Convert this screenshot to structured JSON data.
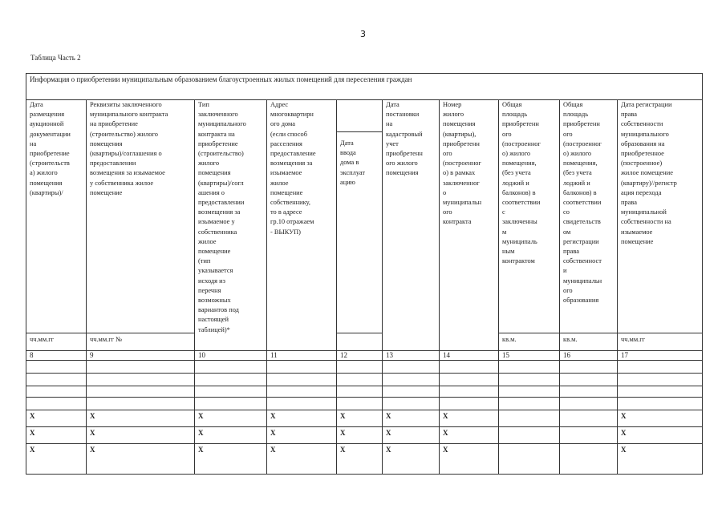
{
  "page_number": "3",
  "caption": "Таблица Часть 2",
  "table": {
    "title": "Информация о приобретении муниципальным образованием благоустроенных жилых помещений для  переселения граждан",
    "columns": [
      {
        "header": "Дата\nразмещения\nаукционной\nдокументации\nна\nприобретение\n(строительств\nа) жилого\nпомещения\n(квартиры)/",
        "unit": "чч.мм.гг",
        "number": "8"
      },
      {
        "header": "Реквизиты  заключенного\nмуниципального контракта\nна приобретение\n(строительство)   жилого\nпомещения\n(квартиры)/соглашения  о\nпредоставлении\nвозмещения за изымаемое\nу собственника  жилое\nпомещение",
        "unit": "чч.мм.гг №",
        "number": "9"
      },
      {
        "header": "Тип\nзаключенного\nмуниципального\nконтракта  на\nприобретение\n(строительство)\nжилого\nпомещения\n(квартиры)/согл\nашения о\nпредоставлении\nвозмещения за\nизымаемое у\nсобственника\nжилое\nпомещение\n(тип\nуказывается\nисходя   из\nперечня\nвозможных\nвариантов под\nнастоящей\nтаблицей)*",
        "unit": "",
        "number": "10"
      },
      {
        "header": "Адрес\nмногоквартирн\nого дома\n(если способ\nрасселения\nпредоставление\nвозмещения за\nизымаемое\nжилое\nпомещение\nсобственнику,\nто в адресе\nгр.10 отражаем\n- ВЫКУП)",
        "unit": "",
        "number": "11"
      },
      {
        "header": "Дата\nввода\nдома в\nэксплуат\nацию",
        "unit": "",
        "number": "12"
      },
      {
        "header": "Дата\nпостановки\nна\nкадастровый\nучет\nприобретенн\nого жилого\nпомещения",
        "unit": "",
        "number": "13"
      },
      {
        "header": "Номер\nжилого\nпомещения\n(квартиры),\nприобретенн\nого\n(построенног\nо) в рамках\nзаключенног\nо\nмуниципальн\nого\nконтракта",
        "unit": "",
        "number": "14"
      },
      {
        "header": "Общая\nплощадь\nприобретенн\nого\n(построенног\nо) жилого\nпомещения,\n(без учета\nлоджий  и\nбалконов) в\nсоответствии\nс\nзаключенны\nм\nмуниципаль\nным\nконтрактом",
        "unit": "кв.м.",
        "number": "15"
      },
      {
        "header": "Общая\nплощадь\nприобретенн\nого\n(построенног\nо) жилого\nпомещения,\n(без учета\nлоджий  и\nбалконов) в\nсоответствии\nсо\nсвидетельств\nом\nрегистрации\nправа\nсобственност\nи\nмуниципальн\nого\nобразования",
        "unit": "кв.м.",
        "number": "16"
      },
      {
        "header": "Дата регистрации\nправа\nсобственности\nмуниципального\nобразования на\nприобретенное\n(построенное)\nжилое помещение\n(квартиру)//регистр\nация перехода\nправа\nмуниципальной\nсобственности  на\nизымаемое\nпомещение",
        "unit": "чч.мм.гг",
        "number": "17"
      }
    ],
    "x_rows": [
      [
        "X",
        "X",
        "X",
        "X",
        "X",
        "X",
        "X",
        "",
        "",
        "X"
      ],
      [
        "X",
        "X",
        "X",
        "X",
        "X",
        "X",
        "X",
        "",
        "",
        "X"
      ],
      [
        "X",
        "X",
        "X",
        "X",
        "X",
        "X",
        "X",
        "",
        "",
        "X"
      ]
    ]
  }
}
